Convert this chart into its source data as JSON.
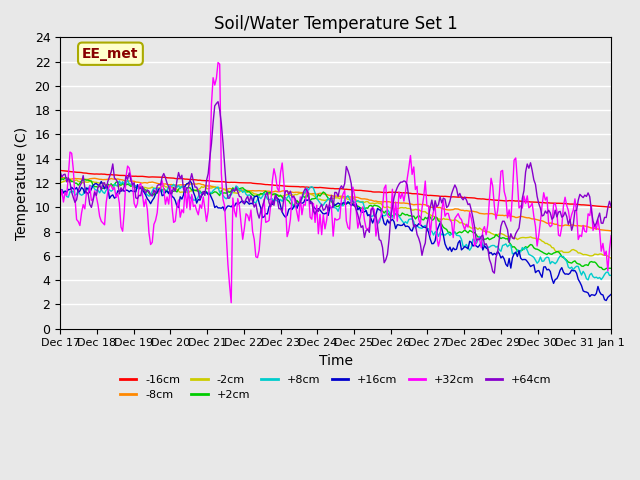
{
  "title": "Soil/Water Temperature Set 1",
  "xlabel": "Time",
  "ylabel": "Temperature (C)",
  "ylim": [
    0,
    24
  ],
  "yticks": [
    0,
    2,
    4,
    6,
    8,
    10,
    12,
    14,
    16,
    18,
    20,
    22,
    24
  ],
  "background_color": "#e8e8e8",
  "plot_bg_color": "#e8e8e8",
  "grid_color": "#ffffff",
  "annotation_text": "EE_met",
  "annotation_bg": "#ffffcc",
  "annotation_border": "#aaaa00",
  "annotation_text_color": "#880000",
  "series": [
    {
      "label": "-16cm",
      "color": "#ff0000"
    },
    {
      "label": "-8cm",
      "color": "#ff8800"
    },
    {
      "label": "-2cm",
      "color": "#cccc00"
    },
    {
      "label": "+2cm",
      "color": "#00cc00"
    },
    {
      "label": "+8cm",
      "color": "#00cccc"
    },
    {
      "label": "+16cm",
      "color": "#0000cc"
    },
    {
      "label": "+32cm",
      "color": "#ff00ff"
    },
    {
      "label": "+64cm",
      "color": "#8800cc"
    }
  ],
  "n_points": 336,
  "x_start": 0,
  "x_end": 15,
  "xtick_positions": [
    0,
    1,
    2,
    3,
    4,
    5,
    6,
    7,
    8,
    9,
    10,
    11,
    12,
    13,
    14,
    15
  ],
  "xtick_labels": [
    "Dec 17",
    "Dec 18",
    "Dec 19",
    "Dec 20",
    "Dec 21",
    "Dec 22",
    "Dec 23",
    "Dec 24",
    "Dec 25",
    "Dec 26",
    "Dec 27",
    "Dec 28",
    "Dec 29",
    "Dec 30",
    "Dec 31",
    "Jan 1"
  ]
}
